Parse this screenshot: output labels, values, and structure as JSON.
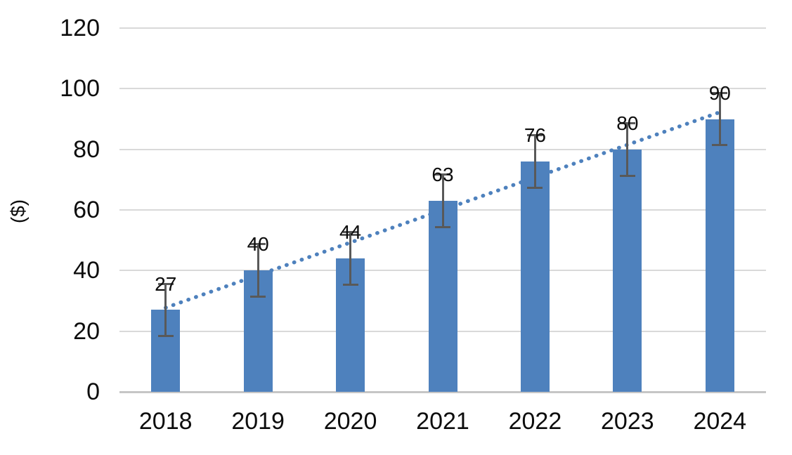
{
  "chart_data": {
    "type": "bar",
    "title": "",
    "categories": [
      "2018",
      "2019",
      "2020",
      "2021",
      "2022",
      "2023",
      "2024"
    ],
    "values": [
      27,
      40,
      44,
      63,
      76,
      80,
      90
    ],
    "data_labels": [
      "27",
      "40",
      "44",
      "63",
      "76",
      "80",
      "90"
    ],
    "error_bar_plus_minus": 9,
    "trendline": {
      "type": "linear",
      "style": "dotted",
      "start_value": 27.75,
      "end_value": 92.25
    },
    "xlabel": "",
    "ylabel": "($)",
    "ylim": [
      0,
      120
    ],
    "yticks": [
      0,
      20,
      40,
      60,
      80,
      100,
      120
    ],
    "grid": true,
    "legend": false,
    "colors": {
      "bar": "#4e81bd",
      "trendline": "#4e81bd",
      "error_bar": "#595959",
      "gridline": "#d9d9d9",
      "axis_line": "#c6c6c6",
      "text": "#0d0d0d",
      "background": "#ffffff"
    }
  }
}
